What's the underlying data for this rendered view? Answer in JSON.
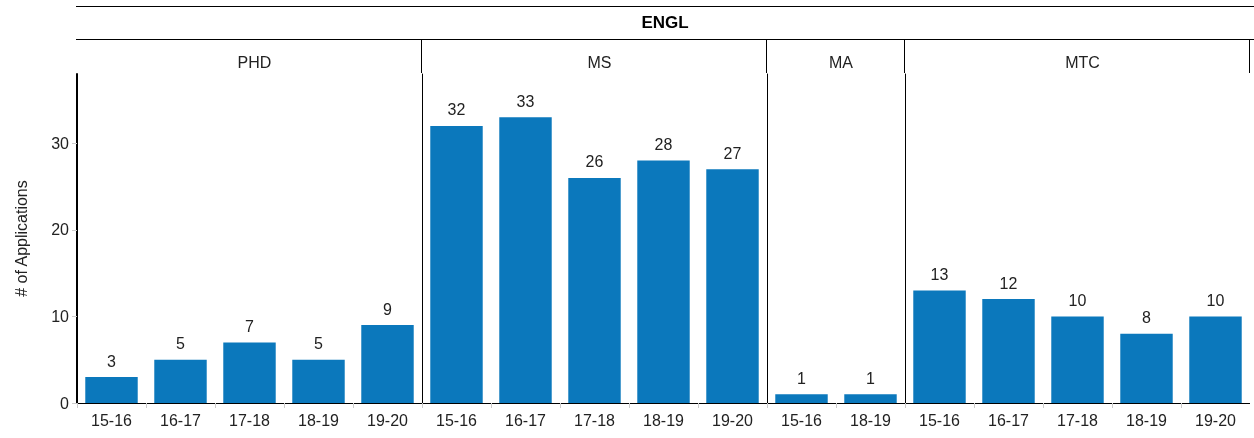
{
  "chart_data": [
    {
      "type": "bar",
      "title": "PHD",
      "annotations": [
        "ENGL"
      ],
      "ylabel": "# of Applications",
      "categories": [
        "15-16",
        "16-17",
        "17-18",
        "18-19",
        "19-20"
      ],
      "values": [
        3,
        5,
        7,
        5,
        9
      ],
      "color": "#0b78bc",
      "ylim": [
        0,
        38
      ],
      "yticks": [
        0,
        10,
        20,
        30
      ],
      "data_labels": true
    },
    {
      "type": "bar",
      "title": "MS",
      "categories": [
        "15-16",
        "16-17",
        "17-18",
        "18-19",
        "19-20"
      ],
      "values": [
        32,
        33,
        26,
        28,
        27
      ],
      "color": "#0b78bc",
      "ylim": [
        0,
        38
      ],
      "yticks": [
        0,
        10,
        20,
        30
      ],
      "data_labels": true,
      "tick_labels": "x"
    },
    {
      "type": "bar",
      "title": "MA",
      "categories": [
        "15-16",
        "18-19"
      ],
      "values": [
        1,
        1
      ],
      "color": "#0b78bc",
      "ylim": [
        0,
        38
      ],
      "yticks": [
        0,
        10,
        20,
        30
      ],
      "data_labels": true,
      "tick_labels": "x"
    },
    {
      "type": "bar",
      "title": "MTC",
      "categories": [
        "15-16",
        "16-17",
        "17-18",
        "18-19",
        "19-20"
      ],
      "values": [
        13,
        12,
        10,
        8,
        10
      ],
      "color": "#0b78bc",
      "ylim": [
        0,
        38
      ],
      "yticks": [
        0,
        10,
        20,
        30
      ],
      "data_labels": true,
      "tick_labels": "x"
    }
  ]
}
